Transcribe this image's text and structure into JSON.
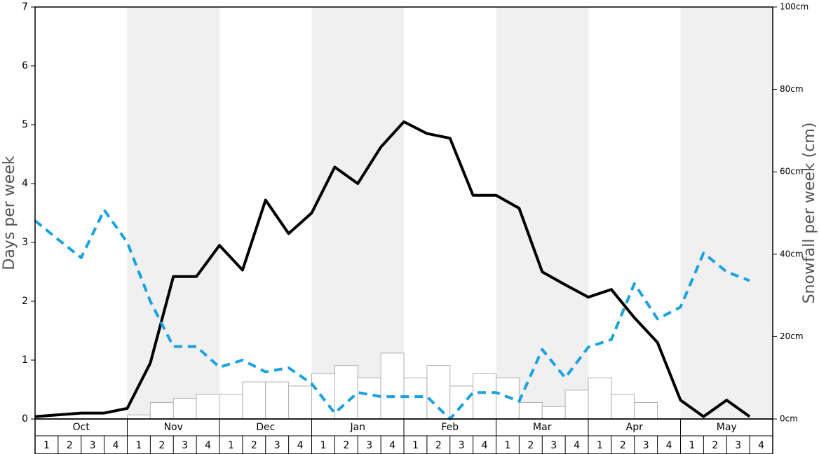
{
  "chart_data": {
    "type": "bar",
    "months": [
      "Oct",
      "Nov",
      "Dec",
      "Jan",
      "Feb",
      "Mar",
      "Apr",
      "May"
    ],
    "weeks": [
      "1",
      "2",
      "3",
      "4"
    ],
    "ylabel": "Days per week",
    "y2label": "Snowfall per week (cm)",
    "ylim": [
      0,
      7
    ],
    "yticks": [
      0,
      1,
      2,
      3,
      4,
      5,
      6,
      7
    ],
    "y2lim": [
      0,
      100
    ],
    "y2ticks": [
      {
        "value": 0,
        "label": "0cm"
      },
      {
        "value": 20,
        "label": "20cm"
      },
      {
        "value": 40,
        "label": "40cm"
      },
      {
        "value": 60,
        "label": "60cm"
      },
      {
        "value": 80,
        "label": "80cm"
      },
      {
        "value": 100,
        "label": "100cm"
      }
    ],
    "shade_color": "#f0f0f0",
    "series": [
      {
        "type": "bar",
        "axis": "y2",
        "color": "#ffffff",
        "edge_color": "#b0b0b0",
        "values": [
          0,
          0,
          0,
          0,
          1,
          4,
          5,
          6,
          6,
          9,
          9,
          8,
          11,
          13,
          10,
          16,
          10,
          13,
          8,
          11,
          10,
          4,
          3,
          7,
          10,
          6,
          4,
          0,
          0,
          0,
          0,
          0
        ]
      },
      {
        "type": "line",
        "axis": "y",
        "color": "#000000",
        "dashed": false,
        "values": [
          0.04,
          0.07,
          0.1,
          0.1,
          0.18,
          0.95,
          2.42,
          2.42,
          2.95,
          2.53,
          3.72,
          3.15,
          3.5,
          4.28,
          4.0,
          4.62,
          5.05,
          4.85,
          4.77,
          3.8,
          3.8,
          3.58,
          2.5,
          2.28,
          2.07,
          2.2,
          1.72,
          1.3,
          0.32,
          0.04,
          0.32,
          0.04
        ]
      },
      {
        "type": "line",
        "axis": "y",
        "color": "#1ba1e2",
        "dashed": true,
        "values": [
          3.37,
          3.05,
          2.74,
          3.55,
          3.0,
          2.0,
          1.23,
          1.23,
          0.88,
          1.0,
          0.8,
          0.87,
          0.6,
          0.1,
          0.45,
          0.38,
          0.38,
          0.38,
          0.0,
          0.45,
          0.45,
          0.3,
          1.18,
          0.7,
          1.22,
          1.35,
          2.3,
          1.7,
          1.9,
          2.82,
          2.5,
          2.35
        ]
      }
    ]
  }
}
